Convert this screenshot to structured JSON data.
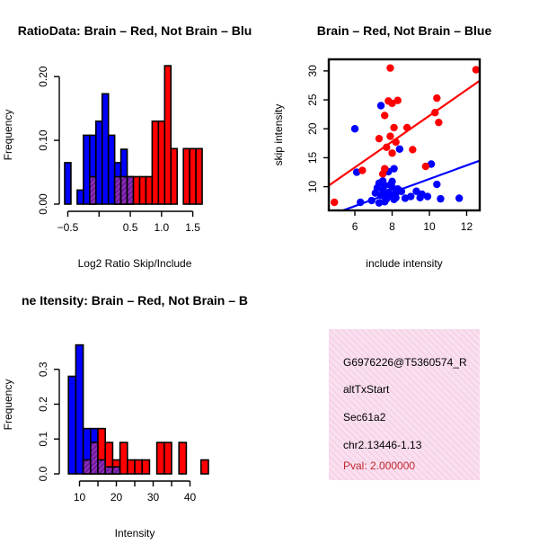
{
  "colors": {
    "red": "#ff0000",
    "blue": "#0000ff",
    "purple": "#6b1fa0",
    "hatch": "#c43ad0",
    "panel_fill": "#f9dfef",
    "panel_hatch": "#f1c4dd",
    "pval": "#c0282d"
  },
  "chart_data": [
    {
      "type": "bar",
      "subtype": "histogram-overlay",
      "title": "RatioData: Brain - Red, Not Brain - Blue",
      "title_display": "RatioData: Brain – Red, Not Brain – Blu",
      "xlabel": "Log2 Ratio Skip/Include",
      "ylabel": "Frequency",
      "bin_width": 0.1,
      "x_start": -0.55,
      "xlim": [
        -0.55,
        1.75
      ],
      "ylim": [
        0,
        0.22
      ],
      "xticks": [
        -0.5,
        0.5,
        1.0,
        1.5
      ],
      "xtick_labels": [
        "−0.5",
        "0.5",
        "1.0",
        "1.5"
      ],
      "yticks": [
        0.0,
        0.1,
        0.2
      ],
      "ytick_labels": [
        "0.00",
        "0.10",
        "0.20"
      ],
      "series": [
        {
          "name": "Not Brain",
          "color": "blue",
          "values": [
            0.065,
            0,
            0.022,
            0.108,
            0.108,
            0.13,
            0.173,
            0.108,
            0.065,
            0.086,
            0.043,
            0,
            0,
            0,
            0,
            0,
            0,
            0,
            0,
            0,
            0,
            0,
            0
          ]
        },
        {
          "name": "Brain",
          "color": "red",
          "values": [
            0,
            0,
            0,
            0,
            0.043,
            0,
            0,
            0,
            0.043,
            0.043,
            0.043,
            0.043,
            0.043,
            0.043,
            0.13,
            0.13,
            0.217,
            0.087,
            0,
            0.087,
            0.087,
            0.087,
            0
          ]
        }
      ]
    },
    {
      "type": "scatter",
      "title": "Brain - Red, Not Brain - Blue",
      "title_display": "Brain – Red, Not Brain – Blue",
      "xlabel": "include intensity",
      "ylabel": "skip intensity",
      "xlim": [
        4.6,
        12.7
      ],
      "ylim": [
        5.9,
        32.0
      ],
      "xticks": [
        6,
        8,
        10,
        12
      ],
      "xtick_labels": [
        "6",
        "8",
        "10",
        "12"
      ],
      "yticks": [
        10,
        15,
        20,
        25,
        30
      ],
      "ytick_labels": [
        "10",
        "15",
        "20",
        "25",
        "30"
      ],
      "series": [
        {
          "name": "Brain",
          "color": "red",
          "x": [
            4.9,
            6.4,
            7.3,
            7.5,
            7.6,
            7.7,
            7.8,
            7.9,
            8.0,
            8.0,
            8.1,
            8.2,
            8.3,
            8.8,
            9.1,
            9.8,
            10.3,
            10.4,
            10.5,
            12.5,
            7.6,
            7.9
          ],
          "y": [
            7.3,
            12.8,
            18.3,
            12.2,
            22.3,
            16.8,
            24.8,
            18.7,
            24.4,
            15.8,
            20.2,
            17.7,
            24.9,
            20.2,
            16.4,
            13.5,
            22.8,
            25.3,
            21.1,
            30.2,
            13.1,
            30.5
          ],
          "trend": [
            [
              4.6,
              10.2
            ],
            [
              12.7,
              28.3
            ]
          ]
        },
        {
          "name": "Not Brain",
          "color": "blue",
          "x": [
            6.0,
            6.1,
            6.3,
            7.2,
            7.3,
            7.4,
            7.5,
            7.6,
            7.7,
            7.8,
            7.9,
            8.0,
            8.1,
            8.2,
            8.4,
            6.9,
            7.1,
            7.3,
            7.5,
            7.7,
            7.9,
            8.1,
            8.3,
            8.5,
            8.7,
            9.0,
            9.3,
            9.6,
            9.9,
            10.1,
            10.4,
            10.6,
            11.6,
            7.4,
            7.8,
            8.2,
            7.6,
            8.0,
            9.5
          ],
          "y": [
            20.0,
            12.5,
            7.3,
            9.8,
            10.6,
            8.5,
            9.4,
            10.2,
            7.9,
            9.0,
            8.5,
            10.9,
            13.1,
            8.1,
            16.5,
            7.6,
            8.9,
            7.2,
            11.0,
            8.6,
            10.3,
            7.8,
            9.6,
            9.2,
            8.0,
            8.3,
            9.2,
            8.7,
            8.3,
            13.9,
            10.4,
            7.9,
            8.0,
            24.0,
            12.6,
            8.9,
            7.4,
            9.9,
            8.1
          ],
          "trend": [
            [
              4.6,
              5.0
            ],
            [
              12.7,
              14.5
            ]
          ]
        }
      ]
    },
    {
      "type": "bar",
      "subtype": "histogram-overlay",
      "title": "Gene Itensity: Brain - Red, Not Brain - Blue",
      "title_display": "ne Itensity: Brain – Red, Not Brain – B",
      "xlabel": "Intensity",
      "ylabel": "Frequency",
      "bin_width": 2,
      "x_start": 5,
      "xlim": [
        5,
        45
      ],
      "ylim": [
        0,
        0.4
      ],
      "xticks": [
        10,
        20,
        30,
        40
      ],
      "xtick_labels": [
        "10",
        "20",
        "30",
        "40"
      ],
      "yticks": [
        0.0,
        0.1,
        0.2,
        0.3
      ],
      "ytick_labels": [
        "0.0",
        "0.1",
        "0.2",
        "0.3"
      ],
      "series": [
        {
          "name": "Not Brain",
          "color": "blue",
          "values": [
            0,
            0.28,
            0.37,
            0.13,
            0.13,
            0.04,
            0.02,
            0.02,
            0,
            0,
            0,
            0,
            0,
            0,
            0,
            0,
            0,
            0,
            0,
            0
          ]
        },
        {
          "name": "Brain",
          "color": "red",
          "values": [
            0,
            0,
            0,
            0.04,
            0.09,
            0.13,
            0.09,
            0.04,
            0.09,
            0.04,
            0.04,
            0.04,
            0,
            0.09,
            0.09,
            0,
            0.09,
            0,
            0,
            0.04
          ]
        }
      ]
    }
  ],
  "info_panel": {
    "event_id": "G6976226@T5360574_R",
    "event_type": "altTxStart",
    "gene": "Sec61a2",
    "location": "chr2.13446-1.13",
    "pval": "Pval: 2.000000"
  }
}
